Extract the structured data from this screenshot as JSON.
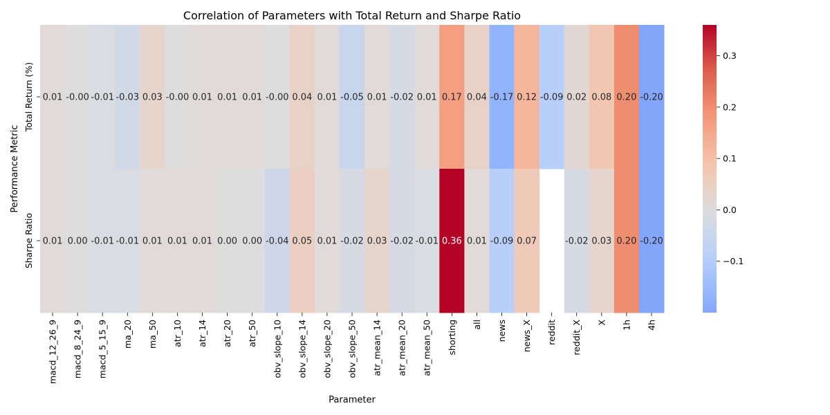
{
  "chart_data": {
    "type": "heatmap",
    "title": "Correlation of Parameters with Total Return and Sharpe Ratio",
    "xlabel": "Parameter",
    "ylabel": "Performance Metric",
    "x_categories": [
      "macd_12_26_9",
      "macd_8_24_9",
      "macd_5_15_9",
      "ma_20",
      "ma_50",
      "atr_10",
      "atr_14",
      "atr_20",
      "atr_50",
      "obv_slope_10",
      "obv_slope_14",
      "obv_slope_20",
      "obv_slope_50",
      "atr_mean_14",
      "atr_mean_20",
      "atr_mean_50",
      "shorting",
      "all",
      "news",
      "news_X",
      "reddit",
      "reddit_X",
      "X",
      "1h",
      "4h"
    ],
    "y_categories": [
      "Total Return (%)",
      "Sharpe Ratio"
    ],
    "values": [
      [
        0.01,
        -0.0,
        -0.01,
        -0.03,
        0.03,
        -0.0,
        0.01,
        0.01,
        0.01,
        -0.0,
        0.04,
        0.01,
        -0.05,
        0.01,
        -0.02,
        0.01,
        0.17,
        0.04,
        -0.17,
        0.12,
        -0.09,
        0.02,
        0.08,
        0.2,
        -0.2
      ],
      [
        0.01,
        0.0,
        -0.01,
        -0.01,
        0.01,
        0.01,
        0.01,
        0.0,
        0.0,
        -0.04,
        0.05,
        0.01,
        -0.02,
        0.03,
        -0.02,
        -0.01,
        0.36,
        0.01,
        -0.09,
        0.07,
        null,
        -0.02,
        0.03,
        0.2,
        -0.2
      ]
    ],
    "annotations": [
      [
        "0.01",
        "-0.00",
        "-0.01",
        "-0.03",
        "0.03",
        "-0.00",
        "0.01",
        "0.01",
        "0.01",
        "-0.00",
        "0.04",
        "0.01",
        "-0.05",
        "0.01",
        "-0.02",
        "0.01",
        "0.17",
        "0.04",
        "-0.17",
        "0.12",
        "-0.09",
        "0.02",
        "0.08",
        "0.20",
        "-0.20"
      ],
      [
        "0.01",
        "0.00",
        "-0.01",
        "-0.01",
        "0.01",
        "0.01",
        "0.01",
        "0.00",
        "0.00",
        "-0.04",
        "0.05",
        "0.01",
        "-0.02",
        "0.03",
        "-0.02",
        "-0.01",
        "0.36",
        "0.01",
        "-0.09",
        "0.07",
        "",
        "-0.02",
        "0.03",
        "0.20",
        "-0.20"
      ]
    ],
    "colormap": "coolwarm",
    "colorbar": {
      "vmin": -0.2,
      "vmax": 0.36,
      "ticks": [
        -0.1,
        0.0,
        0.1,
        0.2,
        0.3
      ],
      "tick_labels": [
        "−0.1",
        "0.0",
        "0.1",
        "0.2",
        "0.3"
      ]
    },
    "grid": false,
    "legend": "colorbar-right"
  }
}
